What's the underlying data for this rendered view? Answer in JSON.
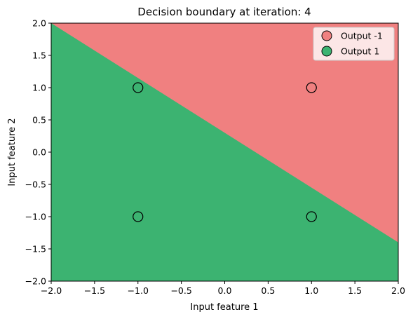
{
  "chart_data": {
    "type": "scatter",
    "title": "Decision boundary at iteration: 4",
    "xlabel": "Input feature 1",
    "ylabel": "Input feature 2",
    "xlim": [
      -2.0,
      2.0
    ],
    "ylim": [
      -2.0,
      2.0
    ],
    "xticks": [
      -2.0,
      -1.5,
      -1.0,
      -0.5,
      0.0,
      0.5,
      1.0,
      1.5,
      2.0
    ],
    "yticks": [
      -2.0,
      -1.5,
      -1.0,
      -0.5,
      0.0,
      0.5,
      1.0,
      1.5,
      2.0
    ],
    "xtick_labels": [
      "−2.0",
      "−1.5",
      "−1.0",
      "−0.5",
      "0.0",
      "0.5",
      "1.0",
      "1.5",
      "2.0"
    ],
    "ytick_labels": [
      "−2.0",
      "−1.5",
      "−1.0",
      "−0.5",
      "0.0",
      "0.5",
      "1.0",
      "1.5",
      "2.0"
    ],
    "grid": false,
    "legend_position": "top-right",
    "legend": [
      {
        "label": "Output -1",
        "color": "#f08080"
      },
      {
        "label": "Output 1",
        "color": "#3cb371"
      }
    ],
    "regions": [
      {
        "class": "Output -1",
        "color": "#f08080",
        "side": "above boundary"
      },
      {
        "class": "Output 1",
        "color": "#3cb371",
        "side": "below boundary"
      }
    ],
    "decision_boundary": {
      "points": [
        [
          -2.0,
          2.0
        ],
        [
          2.0,
          -1.4
        ]
      ]
    },
    "points": [
      {
        "x": -1.0,
        "y": 1.0
      },
      {
        "x": 1.0,
        "y": 1.0
      },
      {
        "x": -1.0,
        "y": -1.0
      },
      {
        "x": 1.0,
        "y": -1.0
      }
    ],
    "point_style": {
      "fill": "none",
      "stroke": "#000000"
    }
  }
}
